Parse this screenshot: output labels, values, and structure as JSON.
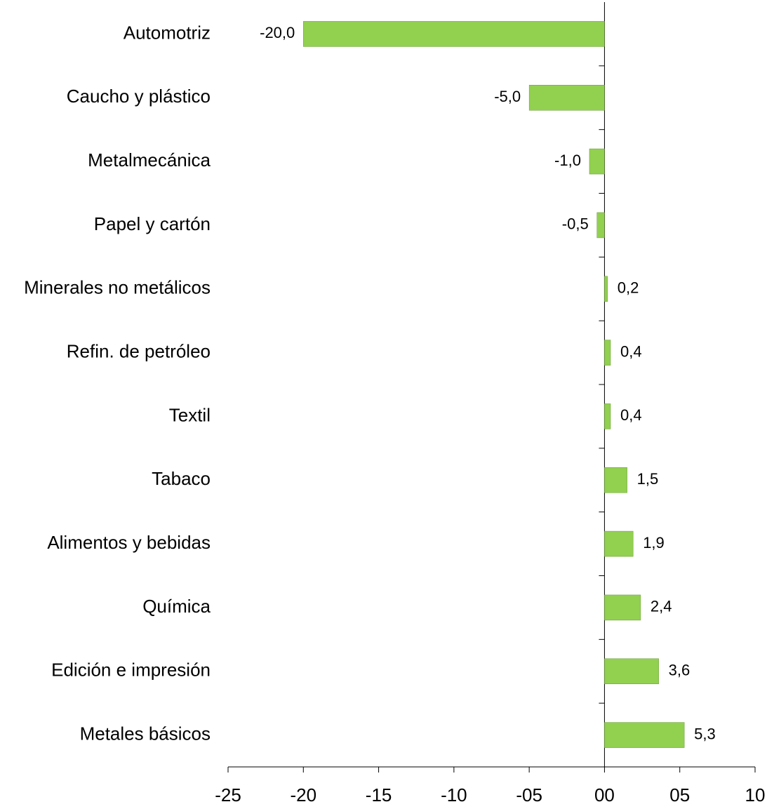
{
  "chart_data": {
    "type": "hbar",
    "categories": [
      "Automotriz",
      "Caucho y plástico",
      "Metalmecánica",
      "Papel y cartón",
      "Minerales no metálicos",
      "Refin. de petróleo",
      "Textil",
      "Tabaco",
      "Alimentos y bebidas",
      "Química",
      "Edición e impresión",
      "Metales básicos"
    ],
    "values": [
      -20.0,
      -5.0,
      -1.0,
      -0.5,
      0.2,
      0.4,
      0.4,
      1.5,
      1.9,
      2.4,
      3.6,
      5.3
    ],
    "value_labels": [
      "-20,0",
      "-5,0",
      "-1,0",
      "-0,5",
      "0,2",
      "0,4",
      "0,4",
      "1,5",
      "1,9",
      "2,4",
      "3,6",
      "5,3"
    ],
    "color": "#92d050",
    "xlim": [
      -25,
      10
    ],
    "xticks": [
      -25,
      -20,
      -15,
      -10,
      {
        "value": -5,
        "label": "-05"
      },
      {
        "value": 0,
        "label": "00"
      },
      {
        "value": 5,
        "label": "05"
      },
      10
    ],
    "grid": false
  }
}
